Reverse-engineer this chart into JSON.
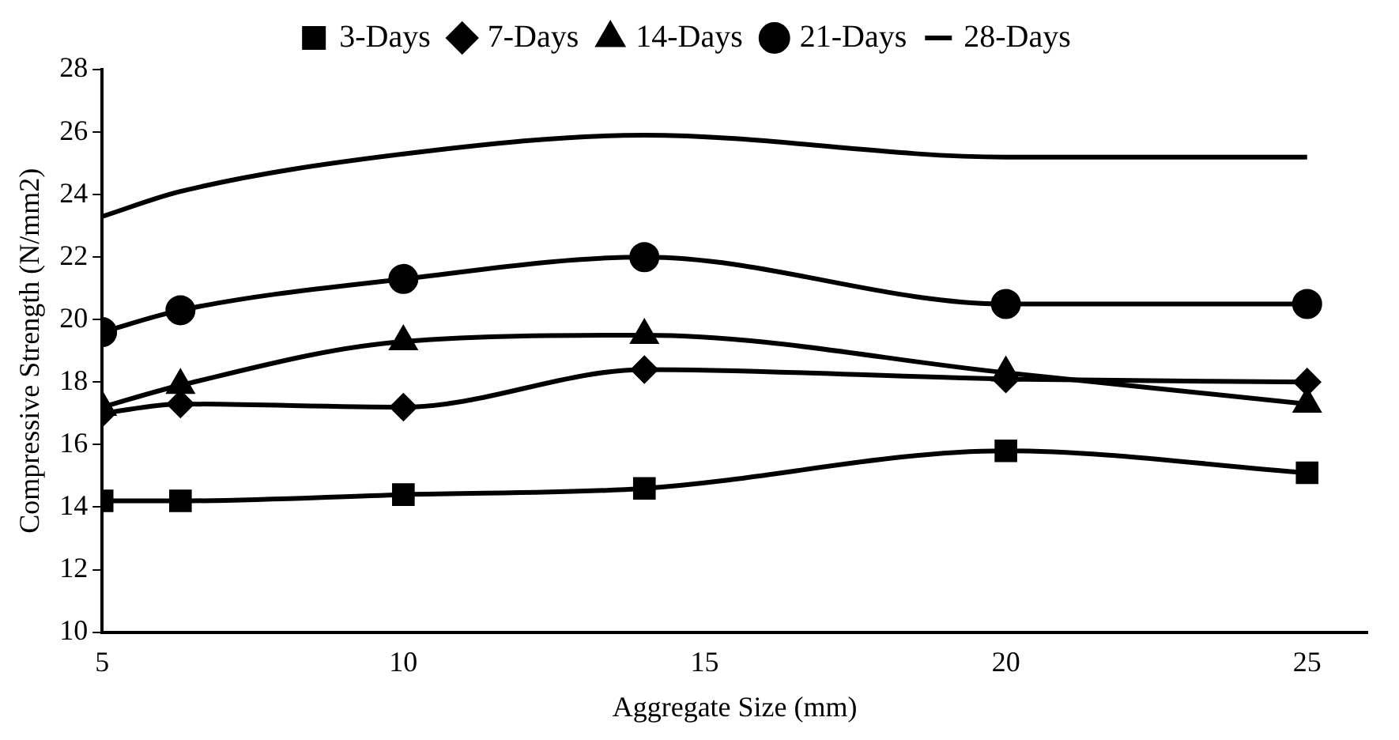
{
  "chart_data": {
    "type": "line",
    "xlabel": "Aggregate Size (mm)",
    "ylabel": "Compressive Strength (N/mm2)",
    "x": [
      5,
      6.3,
      10,
      14,
      20,
      25
    ],
    "xlim": [
      5,
      26
    ],
    "xticks": [
      5,
      10,
      15,
      20,
      25
    ],
    "ylim": [
      10,
      28
    ],
    "yticks": [
      10,
      12,
      14,
      16,
      18,
      20,
      22,
      24,
      26,
      28
    ],
    "grid": false,
    "legend": "top",
    "line_style": "solid",
    "series": [
      {
        "name": "3-Days",
        "color": "#000000",
        "marker": "square",
        "values": [
          14.2,
          14.2,
          14.4,
          14.6,
          15.8,
          15.1
        ]
      },
      {
        "name": "7-Days",
        "color": "#000000",
        "marker": "diamond",
        "values": [
          17.0,
          17.3,
          17.2,
          18.4,
          18.1,
          18.0
        ]
      },
      {
        "name": "14-Days",
        "color": "#000000",
        "marker": "triangle",
        "values": [
          17.2,
          17.9,
          19.3,
          19.5,
          18.3,
          17.3
        ]
      },
      {
        "name": "21-Days",
        "color": "#000000",
        "marker": "circle",
        "values": [
          19.6,
          20.3,
          21.3,
          22.0,
          20.5,
          20.5
        ]
      },
      {
        "name": "28-Days",
        "color": "#000000",
        "marker": "none",
        "values": [
          23.3,
          24.1,
          25.3,
          25.9,
          25.2,
          25.2
        ]
      }
    ]
  }
}
